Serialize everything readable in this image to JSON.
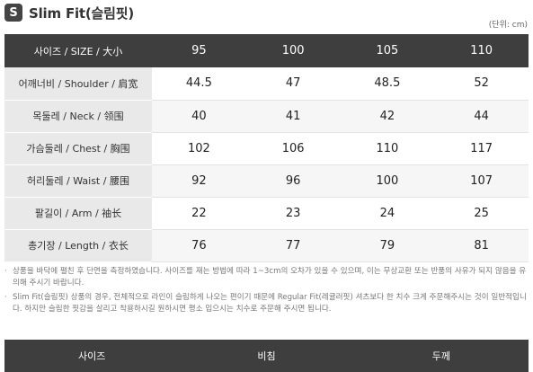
{
  "header": {
    "badge": "S",
    "title": "Slim Fit(슬림핏)",
    "unit": "(단위: cm)"
  },
  "size_table": {
    "columns": [
      "사이즈 / SIZE / 大小",
      "95",
      "100",
      "105",
      "110"
    ],
    "rows": [
      {
        "label": "어깨너비 / Shoulder / 肩宽",
        "values": [
          "44.5",
          "47",
          "48.5",
          "52"
        ]
      },
      {
        "label": "목둘레 / Neck / 领围",
        "values": [
          "40",
          "41",
          "42",
          "44"
        ]
      },
      {
        "label": "가슴둘레 / Chest / 胸围",
        "values": [
          "102",
          "106",
          "110",
          "117"
        ]
      },
      {
        "label": "허리둘레 / Waist / 腰围",
        "values": [
          "92",
          "96",
          "100",
          "107"
        ]
      },
      {
        "label": "팔길이 / Arm / 袖长",
        "values": [
          "22",
          "23",
          "24",
          "25"
        ]
      },
      {
        "label": "총기장 / Length / 衣长",
        "values": [
          "76",
          "77",
          "79",
          "81"
        ]
      }
    ]
  },
  "notes": [
    "상품을 바닥에 펼친 후 단면을 측정하였습니다. 사이즈를 재는 방법에 따라 1~3cm의 오차가 있을 수 있으며, 이는 무상교환 또는 반품의 사유가 되지 않음을 유의해 주시기 바랍니다.",
    "Slim Fit(슬림핏) 상품의 경우, 전체적으로 라인이 슬림하게 나오는 편이기 때문에 Regular Fit(레귤러핏) 셔츠보다 한 치수 크게 주문해주시는 것이 일반적입니다. 하지만 슬림한 핏감을 살리고 착용하시길 원하시면 평소 입으시는 치수로 주문해 주시면 됩니다."
  ],
  "bottom_table": {
    "columns": [
      "사이즈",
      "비침",
      "두께"
    ]
  }
}
